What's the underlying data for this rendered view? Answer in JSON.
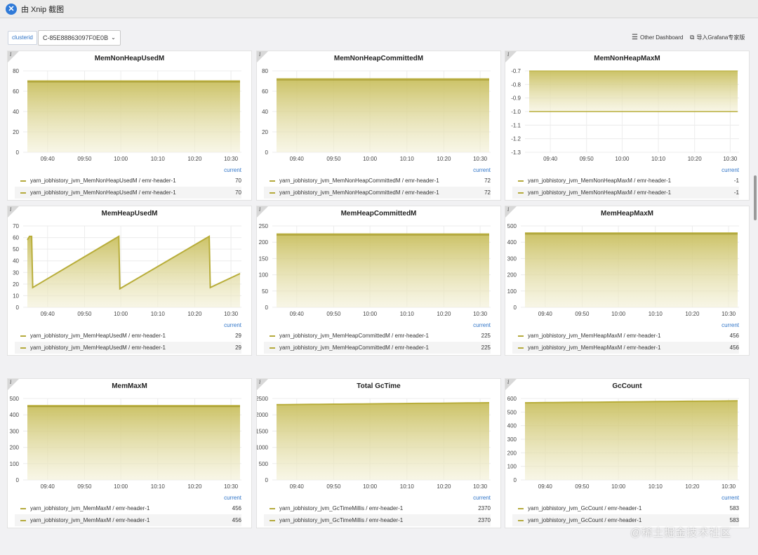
{
  "window": {
    "title": "由 Xnip 截图"
  },
  "toolbar": {
    "var_label": "clusterid",
    "var_value": "C-85E88863097F0E0B",
    "other_dashboard": "Other Dashboard",
    "import_grafana": "导入Grafana专家版"
  },
  "legend_header": "current",
  "x_ticks": [
    "09:40",
    "09:50",
    "10:00",
    "10:10",
    "10:20",
    "10:30"
  ],
  "colors": {
    "line": "#b8ad3a",
    "fill_top": "#c9bf5e",
    "fill_bottom": "#f3f0d6",
    "grid": "#ececec"
  },
  "watermark": "@稀土掘金技术社区",
  "panels": [
    {
      "title": "MemNonHeapUsedM",
      "ymin": 0,
      "ymax": 80,
      "yticks": [
        "0",
        "20",
        "40",
        "60",
        "80"
      ],
      "kind": "flat",
      "value": 70,
      "legend": [
        {
          "name": "yarn_jobhistory_jvm_MemNonHeapUsedM / emr-header-1",
          "value": "70"
        },
        {
          "name": "yarn_jobhistory_jvm_MemNonHeapUsedM / emr-header-1",
          "value": "70"
        }
      ]
    },
    {
      "title": "MemNonHeapCommittedM",
      "ymin": 0,
      "ymax": 80,
      "yticks": [
        "0",
        "20",
        "40",
        "60",
        "80"
      ],
      "kind": "flat",
      "value": 72,
      "legend": [
        {
          "name": "yarn_jobhistory_jvm_MemNonHeapCommittedM / emr-header-1",
          "value": "72"
        },
        {
          "name": "yarn_jobhistory_jvm_MemNonHeapCommittedM / emr-header-1",
          "value": "72"
        }
      ]
    },
    {
      "title": "MemNonHeapMaxM",
      "ymin": -1.3,
      "ymax": -0.7,
      "yticks": [
        "-1.3",
        "-1.2",
        "-1.1",
        "-1.0",
        "-0.9",
        "-0.8",
        "-0.7"
      ],
      "kind": "band",
      "value": -1,
      "legend": [
        {
          "name": "yarn_jobhistory_jvm_MemNonHeapMaxM / emr-header-1",
          "value": "-1"
        },
        {
          "name": "yarn_jobhistory_jvm_MemNonHeapMaxM / emr-header-1",
          "value": "-1"
        }
      ]
    },
    {
      "title": "MemHeapUsedM",
      "ymin": 0,
      "ymax": 70,
      "yticks": [
        "0",
        "10",
        "20",
        "30",
        "40",
        "50",
        "60",
        "70"
      ],
      "kind": "saw",
      "value": 29,
      "legend": [
        {
          "name": "yarn_jobhistory_jvm_MemHeapUsedM / emr-header-1",
          "value": "29"
        },
        {
          "name": "yarn_jobhistory_jvm_MemHeapUsedM / emr-header-1",
          "value": "29"
        }
      ]
    },
    {
      "title": "MemHeapCommittedM",
      "ymin": 0,
      "ymax": 250,
      "yticks": [
        "0",
        "50",
        "100",
        "150",
        "200",
        "250"
      ],
      "kind": "flat",
      "value": 225,
      "legend": [
        {
          "name": "yarn_jobhistory_jvm_MemHeapCommittedM / emr-header-1",
          "value": "225"
        },
        {
          "name": "yarn_jobhistory_jvm_MemHeapCommittedM / emr-header-1",
          "value": "225"
        }
      ]
    },
    {
      "title": "MemHeapMaxM",
      "ymin": 0,
      "ymax": 500,
      "yticks": [
        "0",
        "100",
        "200",
        "300",
        "400",
        "500"
      ],
      "kind": "flat",
      "value": 456,
      "legend": [
        {
          "name": "yarn_jobhistory_jvm_MemHeapMaxM / emr-header-1",
          "value": "456"
        },
        {
          "name": "yarn_jobhistory_jvm_MemHeapMaxM / emr-header-1",
          "value": "456"
        }
      ]
    },
    {
      "title": "MemMaxM",
      "ymin": 0,
      "ymax": 500,
      "yticks": [
        "0",
        "100",
        "200",
        "300",
        "400",
        "500"
      ],
      "kind": "flat",
      "value": 456,
      "legend": [
        {
          "name": "yarn_jobhistory_jvm_MemMaxM / emr-header-1",
          "value": "456"
        },
        {
          "name": "yarn_jobhistory_jvm_MemMaxM / emr-header-1",
          "value": "456"
        }
      ]
    },
    {
      "title": "Total GcTime",
      "ymin": 0,
      "ymax": 2500,
      "yticks": [
        "0",
        "500",
        "1000",
        "1500",
        "2000",
        "2500"
      ],
      "kind": "rising",
      "value": 2370,
      "legend": [
        {
          "name": "yarn_jobhistory_jvm_GcTimeMillis / emr-header-1",
          "value": "2370"
        },
        {
          "name": "yarn_jobhistory_jvm_GcTimeMillis / emr-header-1",
          "value": "2370"
        }
      ]
    },
    {
      "title": "GcCount",
      "ymin": 0,
      "ymax": 600,
      "yticks": [
        "0",
        "100",
        "200",
        "300",
        "400",
        "500",
        "600"
      ],
      "kind": "rising",
      "value": 583,
      "legend": [
        {
          "name": "yarn_jobhistory_jvm_GcCount / emr-header-1",
          "value": "583"
        },
        {
          "name": "yarn_jobhistory_jvm_GcCount / emr-header-1",
          "value": "583"
        }
      ]
    }
  ]
}
